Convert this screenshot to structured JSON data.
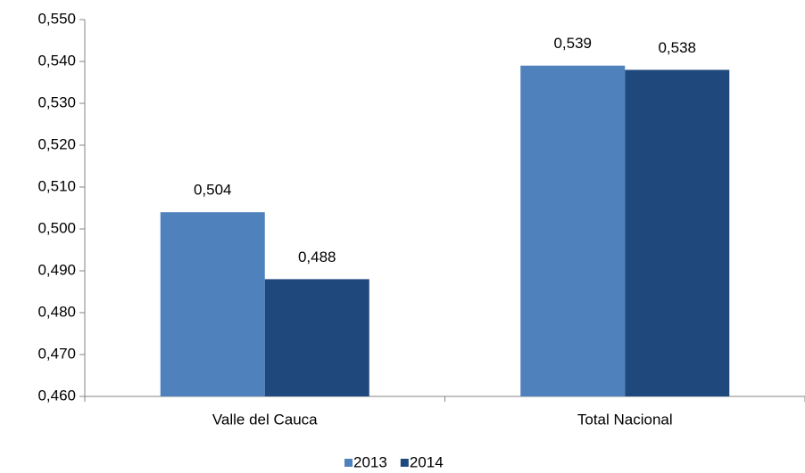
{
  "chart_data": {
    "type": "bar",
    "categories": [
      "Valle del Cauca",
      "Total Nacional"
    ],
    "series": [
      {
        "name": "2013",
        "color": "#4f81bd",
        "values": [
          0.504,
          0.539
        ],
        "value_labels": [
          "0,504",
          "0,539"
        ]
      },
      {
        "name": "2014",
        "color": "#1f497d",
        "values": [
          0.488,
          0.538
        ],
        "value_labels": [
          "0,488",
          "0,538"
        ]
      }
    ],
    "ylim": [
      0.46,
      0.55
    ],
    "yticks": [
      {
        "value": 0.46,
        "label": "0,460"
      },
      {
        "value": 0.47,
        "label": "0,470"
      },
      {
        "value": 0.48,
        "label": "0,480"
      },
      {
        "value": 0.49,
        "label": "0,490"
      },
      {
        "value": 0.5,
        "label": "0,500"
      },
      {
        "value": 0.51,
        "label": "0,510"
      },
      {
        "value": 0.52,
        "label": "0,520"
      },
      {
        "value": 0.53,
        "label": "0,530"
      },
      {
        "value": 0.54,
        "label": "0,540"
      },
      {
        "value": 0.55,
        "label": "0,550"
      }
    ],
    "grid": false,
    "legend": "bottom"
  }
}
